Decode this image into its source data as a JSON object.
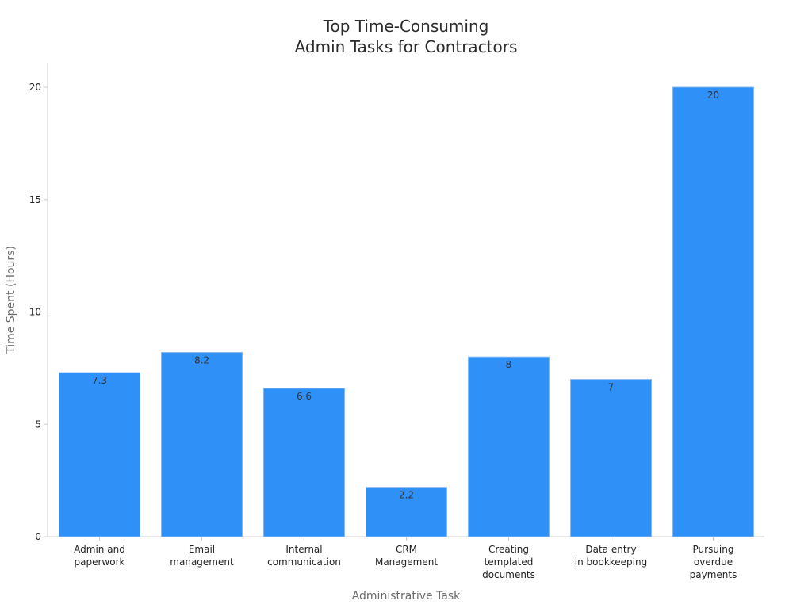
{
  "chart_data": {
    "type": "bar",
    "title": [
      "Top Time-Consuming",
      "Admin Tasks for Contractors"
    ],
    "xlabel": "Administrative Task",
    "ylabel": "Time Spent (Hours)",
    "categories": [
      [
        "Admin and",
        "paperwork"
      ],
      [
        "Email",
        "management"
      ],
      [
        "Internal",
        "communication"
      ],
      [
        "CRM",
        "Management"
      ],
      [
        "Creating",
        "templated",
        "documents"
      ],
      [
        "Data entry",
        "in bookkeeping"
      ],
      [
        "Pursuing",
        "overdue",
        "payments"
      ]
    ],
    "values": [
      7.3,
      8.2,
      6.6,
      2.2,
      8,
      7,
      20
    ],
    "value_labels": [
      "7.3",
      "8.2",
      "6.6",
      "2.2",
      "8",
      "7",
      "20"
    ],
    "ylim": [
      0,
      21
    ],
    "yticks": [
      0,
      5,
      10,
      15,
      20
    ],
    "grid": false,
    "bar_color": "#2f90f8",
    "bar_edge_color": "#86b9f2",
    "axis_color": "#cccccc",
    "legend": "none"
  }
}
